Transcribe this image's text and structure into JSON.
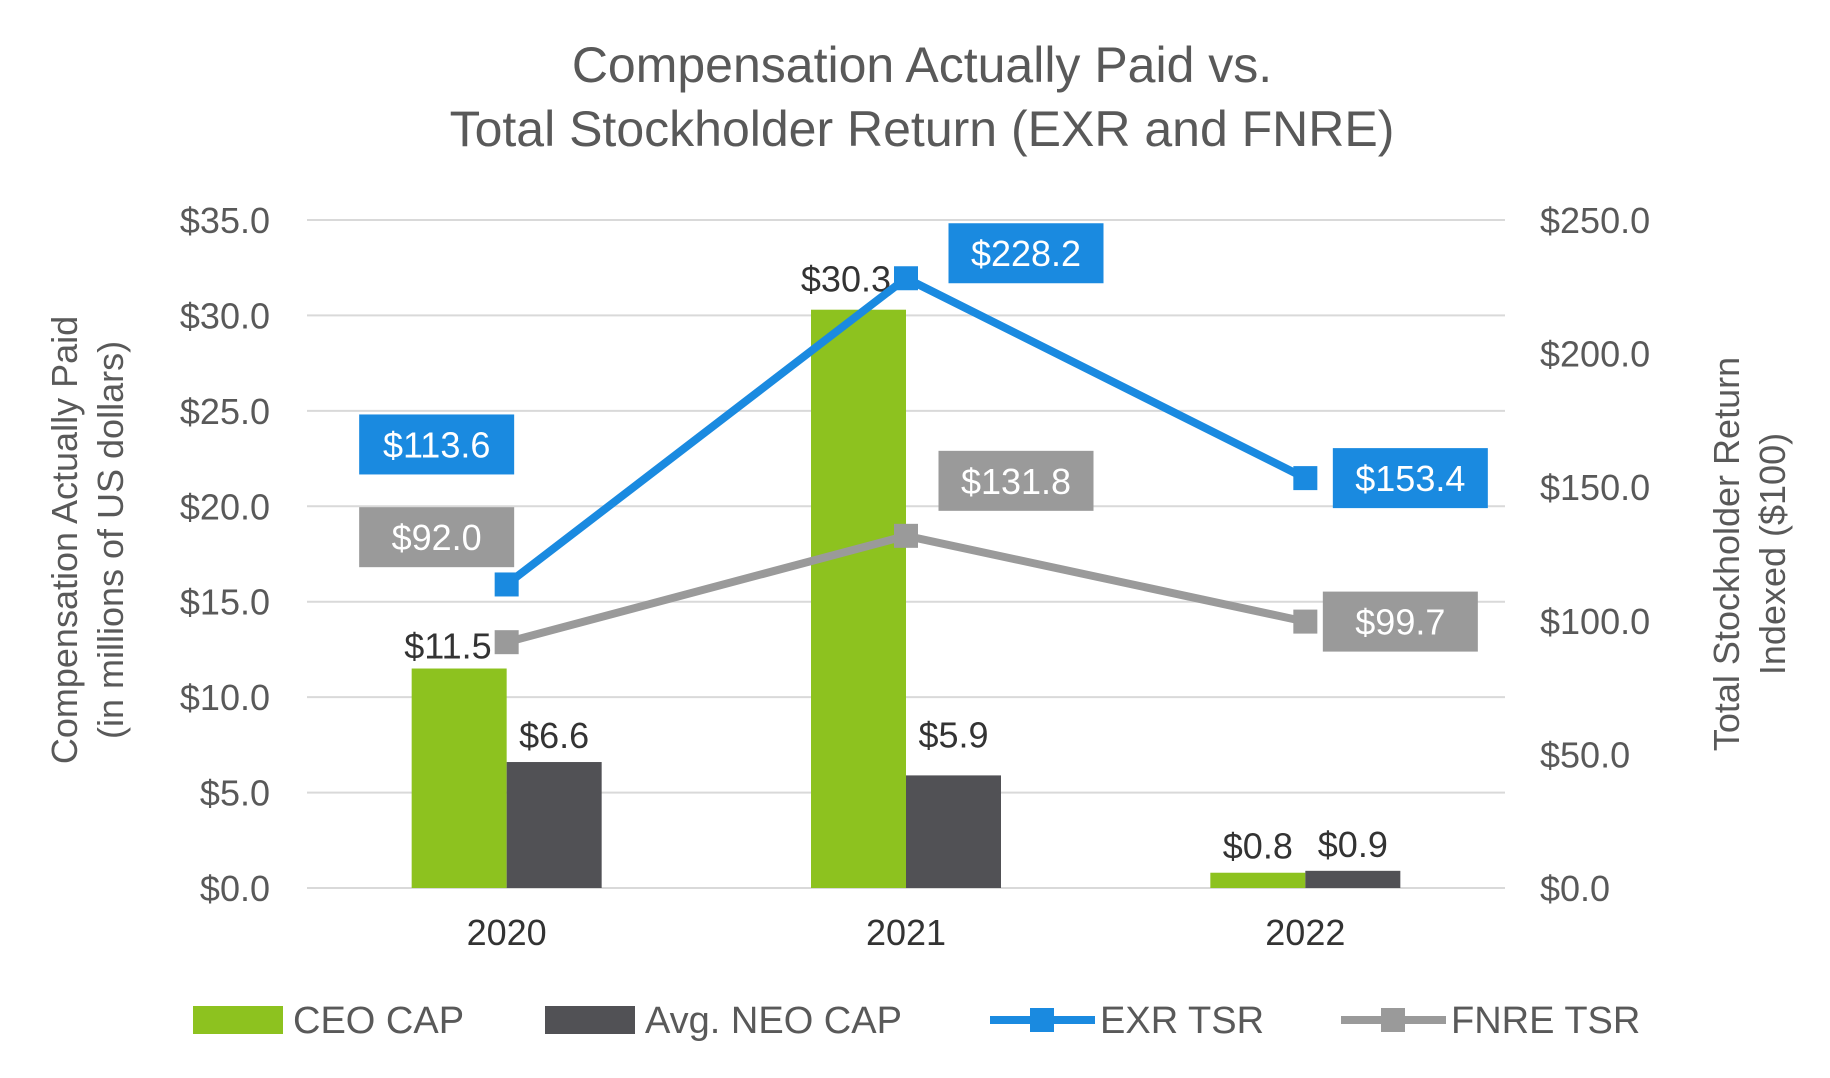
{
  "chart_data": {
    "type": "bar+line",
    "title_lines": [
      "Compensation Actually Paid vs.",
      "Total Stockholder Return (EXR and FNRE)"
    ],
    "categories": [
      "2020",
      "2021",
      "2022"
    ],
    "y_left": {
      "label_lines": [
        "Compensation Actually Paid",
        "(in millions of US dollars)"
      ],
      "min": 0,
      "max": 35,
      "step": 5,
      "tick_labels": [
        "$0.0",
        "$5.0",
        "$10.0",
        "$15.0",
        "$20.0",
        "$25.0",
        "$30.0",
        "$35.0"
      ]
    },
    "y_right": {
      "label_lines": [
        "Total Stockholder Return",
        "Indexed ($100)"
      ],
      "min": 0,
      "max": 250,
      "step": 50,
      "tick_labels": [
        "$0.0",
        "$50.0",
        "$100.0",
        "$150.0",
        "$200.0",
        "$250.0"
      ]
    },
    "bar_series": [
      {
        "name": "CEO CAP",
        "color": "#8dc21f",
        "values": [
          11.5,
          30.3,
          0.8
        ],
        "labels": [
          "$11.5",
          "$30.3",
          "$0.8"
        ]
      },
      {
        "name": "Avg. NEO CAP",
        "color": "#515155",
        "values": [
          6.6,
          5.9,
          0.9
        ],
        "labels": [
          "$6.6",
          "$5.9",
          "$0.9"
        ]
      }
    ],
    "line_series": [
      {
        "name": "EXR TSR",
        "color": "#1a8ae0",
        "values": [
          113.6,
          228.2,
          153.4
        ],
        "labels": [
          "$113.6",
          "$228.2",
          "$153.4"
        ]
      },
      {
        "name": "FNRE TSR",
        "color": "#9a9a9a",
        "values": [
          92.0,
          131.8,
          99.7
        ],
        "labels": [
          "$92.0",
          "$131.8",
          "$99.7"
        ]
      }
    ],
    "legend": [
      "CEO CAP",
      "Avg. NEO CAP",
      "EXR TSR",
      "FNRE TSR"
    ],
    "legend_position": "bottom",
    "grid": true,
    "text_color": "#595959",
    "grid_color": "#d9d9d9"
  }
}
